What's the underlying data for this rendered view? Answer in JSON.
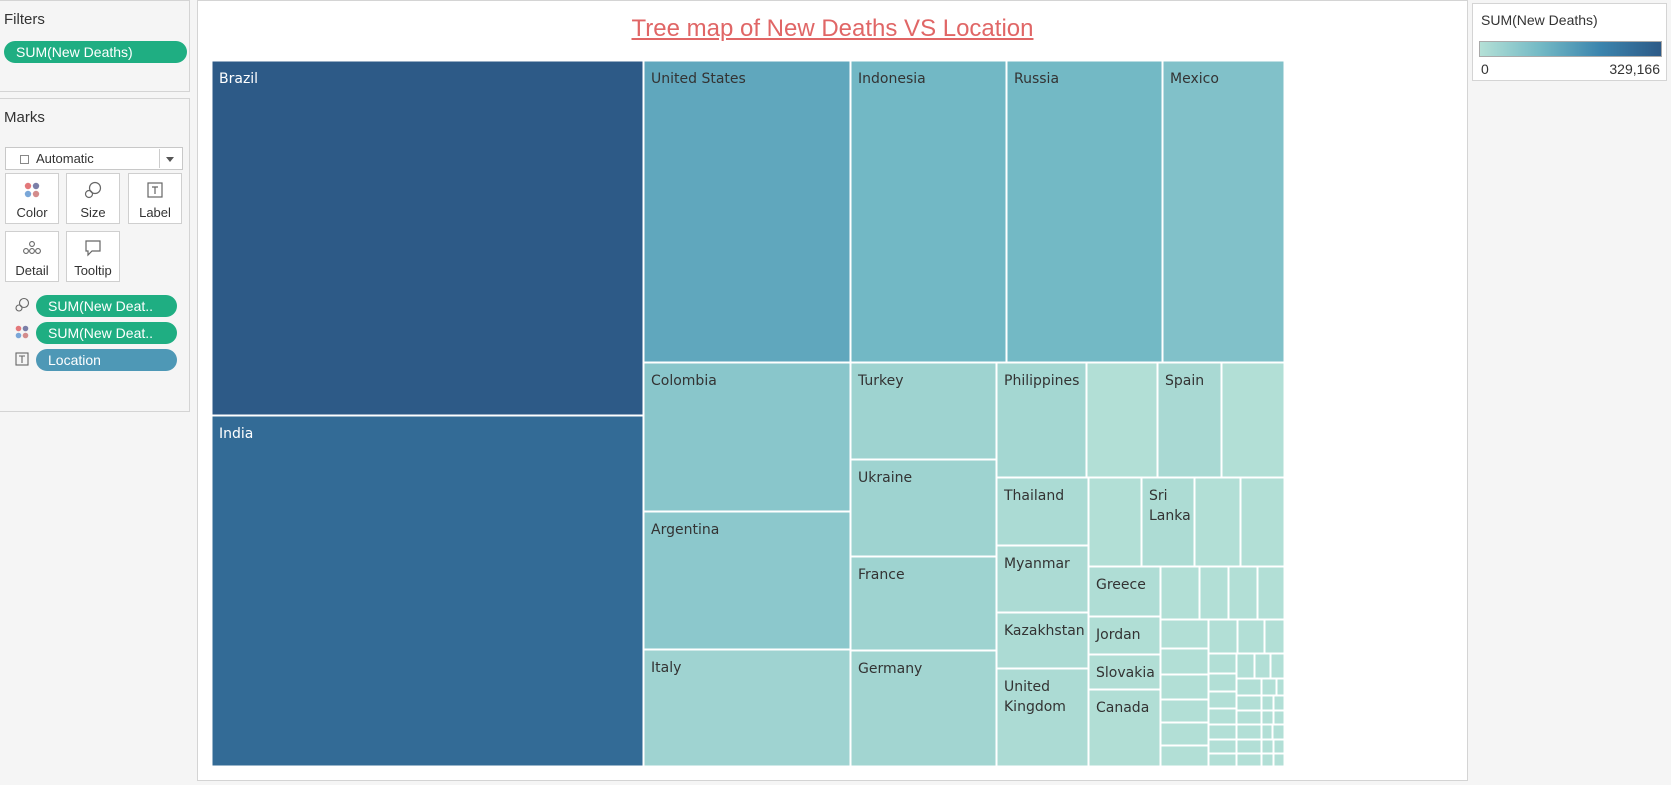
{
  "filters": {
    "title": "Filters",
    "pill": "SUM(New Deaths)"
  },
  "marks": {
    "title": "Marks",
    "type_value": "Automatic",
    "buttons": {
      "color": "Color",
      "size": "Size",
      "label": "Label",
      "detail": "Detail",
      "tooltip": "Tooltip"
    },
    "fields": [
      {
        "icon": "size-icon",
        "label": "SUM(New Deat.."
      },
      {
        "icon": "color-icon",
        "label": "SUM(New Deat.."
      },
      {
        "icon": "label-icon",
        "label": "Location"
      }
    ]
  },
  "viz": {
    "title": "Tree map of New Deaths VS Location"
  },
  "legend": {
    "title": "SUM(New Deaths)",
    "min_label": "0",
    "max_label": "329,166",
    "min_value": 0,
    "max_value": 329166
  },
  "colors": {
    "pill_green": "#1fae82",
    "pill_blue": "#4e98b6",
    "title_red": "#e06666"
  },
  "chart_data": {
    "type": "treemap",
    "title": "Tree map of New Deaths VS Location",
    "measure": "SUM(New Deaths)",
    "dimension": "Location",
    "color_range": [
      0,
      329166
    ],
    "items": [
      {
        "label": "Brazil",
        "value": 329166
      },
      {
        "label": "India",
        "value": 285000
      },
      {
        "label": "United States",
        "value": 145000
      },
      {
        "label": "Indonesia",
        "value": 110000
      },
      {
        "label": "Russia",
        "value": 108000
      },
      {
        "label": "Mexico",
        "value": 85000
      },
      {
        "label": "Colombia",
        "value": 72000
      },
      {
        "label": "Argentina",
        "value": 67000
      },
      {
        "label": "Italy",
        "value": 35000
      },
      {
        "label": "Turkey",
        "value": 37000
      },
      {
        "label": "Ukraine",
        "value": 37000
      },
      {
        "label": "France",
        "value": 36000
      },
      {
        "label": "Germany",
        "value": 30000
      },
      {
        "label": "Philippines",
        "value": 26000
      },
      {
        "label": "Spain",
        "value": 19000
      },
      {
        "label": "Thailand",
        "value": 15000
      },
      {
        "label": "Sri Lanka",
        "value": 12000
      },
      {
        "label": "Myanmar",
        "value": 14000
      },
      {
        "label": "Kazakhstan",
        "value": 13000
      },
      {
        "label": "United Kingdom",
        "value": 13000
      },
      {
        "label": "Greece",
        "value": 8000
      },
      {
        "label": "Jordan",
        "value": 6000
      },
      {
        "label": "Slovakia",
        "value": 5000
      },
      {
        "label": "Canada",
        "value": 5000
      }
    ]
  }
}
